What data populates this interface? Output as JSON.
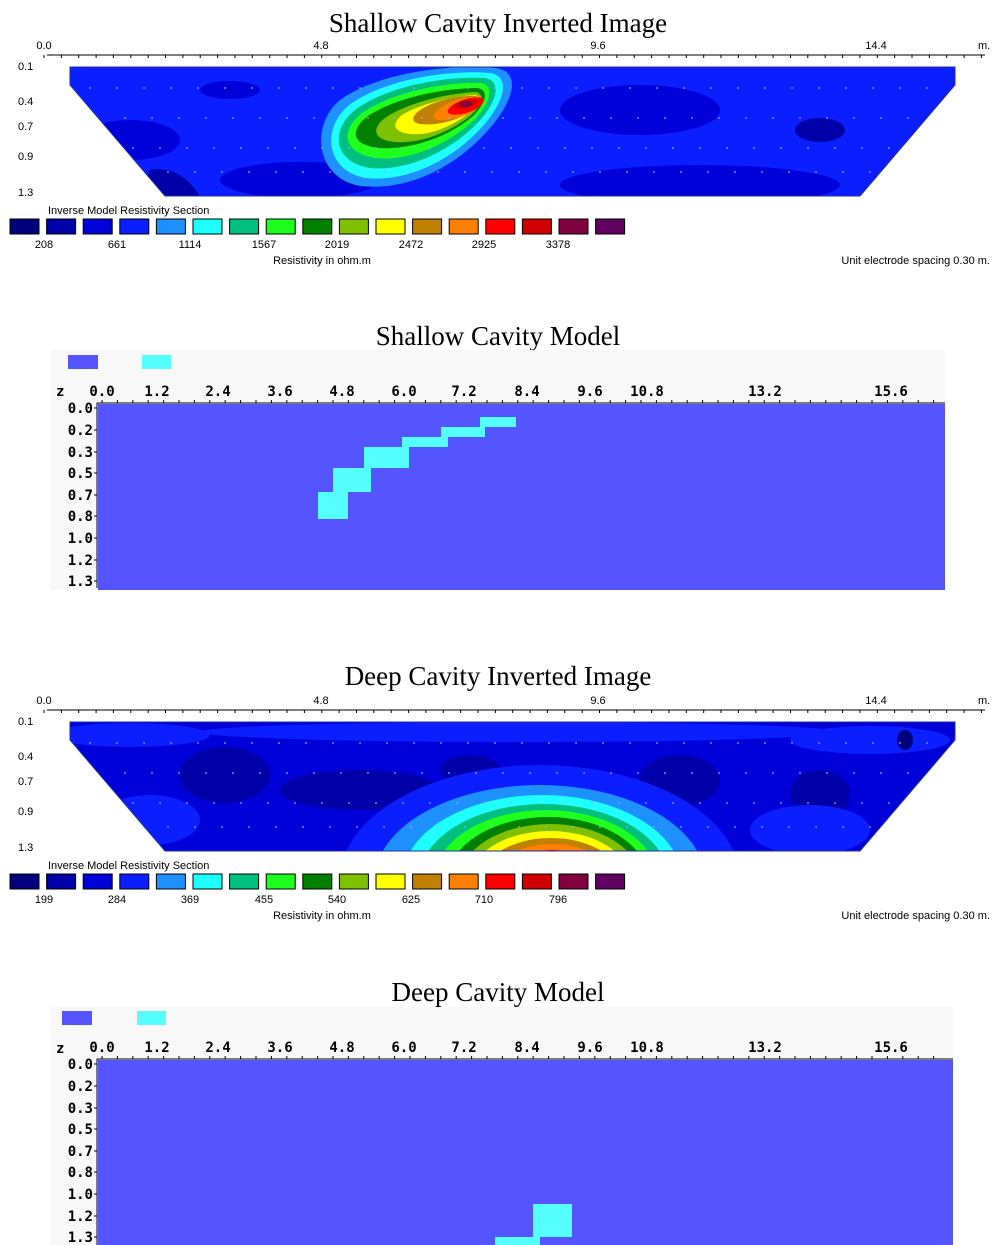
{
  "colors": {
    "palette": [
      "#00007f",
      "#0000a8",
      "#0000d8",
      "#0a1eff",
      "#1e90ff",
      "#1effff",
      "#00c080",
      "#1eff1e",
      "#008000",
      "#7fc000",
      "#ffff00",
      "#c08000",
      "#ff7f00",
      "#ff0000",
      "#d00000",
      "#800040",
      "#600060"
    ],
    "model_background": "#5555ff",
    "model_cavity": "#55ffff",
    "model_panel": "#f8f8f8"
  },
  "panels": [
    {
      "kind": "inverted",
      "title": "Shallow Cavity Inverted Image",
      "x_ticks": [
        "0.0",
        "4.8",
        "9.6",
        "14.4"
      ],
      "x_unit": "m.",
      "depth_ticks": [
        "0.1",
        "0.4",
        "0.7",
        "0.9",
        "1.3"
      ],
      "legend_title": "Inverse Model Resistivity Section",
      "legend_values": [
        "208",
        "661",
        "1114",
        "1567",
        "2019",
        "2472",
        "2925",
        "3378"
      ],
      "legend_unit": "Resistivity in ohm.m",
      "spacing_note": "Unit electrode spacing 0.30 m."
    },
    {
      "kind": "model",
      "title": "Shallow Cavity Model",
      "z_label": "z",
      "x_ticks": [
        "0.0",
        "1.2",
        "2.4",
        "3.6",
        "4.8",
        "6.0",
        "7.2",
        "8.4",
        "9.6",
        "10.8",
        "13.2",
        "15.6"
      ],
      "depth_ticks": [
        "0.0",
        "0.2",
        "0.3",
        "0.5",
        "0.7",
        "0.8",
        "1.0",
        "1.2",
        "1.3"
      ]
    },
    {
      "kind": "inverted",
      "title": "Deep Cavity Inverted Image",
      "x_ticks": [
        "0.0",
        "4.8",
        "9.6",
        "14.4"
      ],
      "x_unit": "m.",
      "depth_ticks": [
        "0.1",
        "0.4",
        "0.7",
        "0.9",
        "1.3"
      ],
      "legend_title": "Inverse Model Resistivity Section",
      "legend_values": [
        "199",
        "284",
        "369",
        "455",
        "540",
        "625",
        "710",
        "796"
      ],
      "legend_unit": "Resistivity in ohm.m",
      "spacing_note": "Unit electrode spacing 0.30 m."
    },
    {
      "kind": "model",
      "title": "Deep Cavity Model",
      "z_label": "z",
      "x_ticks": [
        "0.0",
        "1.2",
        "2.4",
        "3.6",
        "4.8",
        "6.0",
        "7.2",
        "8.4",
        "9.6",
        "10.8",
        "13.2",
        "15.6"
      ],
      "depth_ticks": [
        "0.0",
        "0.2",
        "0.3",
        "0.5",
        "0.7",
        "0.8",
        "1.0",
        "1.2",
        "1.3"
      ]
    }
  ]
}
